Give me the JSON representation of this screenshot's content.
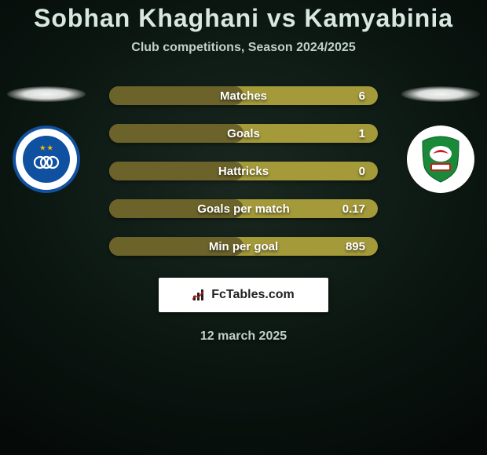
{
  "title": "Sobhan Khaghani vs Kamyabinia",
  "subtitle": "Club competitions, Season 2024/2025",
  "date": "12 march 2025",
  "logo_text": "FcTables.com",
  "colors": {
    "bar_bg": "#a49a3a",
    "bar_fill": "#6b632a",
    "title": "#d8e8e0",
    "subtitle": "#c0d0c8",
    "badge_left_ring": "#1050a0",
    "badge_left_bg": "#ffffff",
    "badge_right_bg": "#ffffff"
  },
  "stats": [
    {
      "label": "Matches",
      "value": "6",
      "fill_pct": 50
    },
    {
      "label": "Goals",
      "value": "1",
      "fill_pct": 50
    },
    {
      "label": "Hattricks",
      "value": "0",
      "fill_pct": 50
    },
    {
      "label": "Goals per match",
      "value": "0.17",
      "fill_pct": 50
    },
    {
      "label": "Min per goal",
      "value": "895",
      "fill_pct": 50
    }
  ],
  "sides": {
    "left": {
      "badge_label": "Esteghlal"
    },
    "right": {
      "badge_label": "Zob Ahan"
    }
  }
}
